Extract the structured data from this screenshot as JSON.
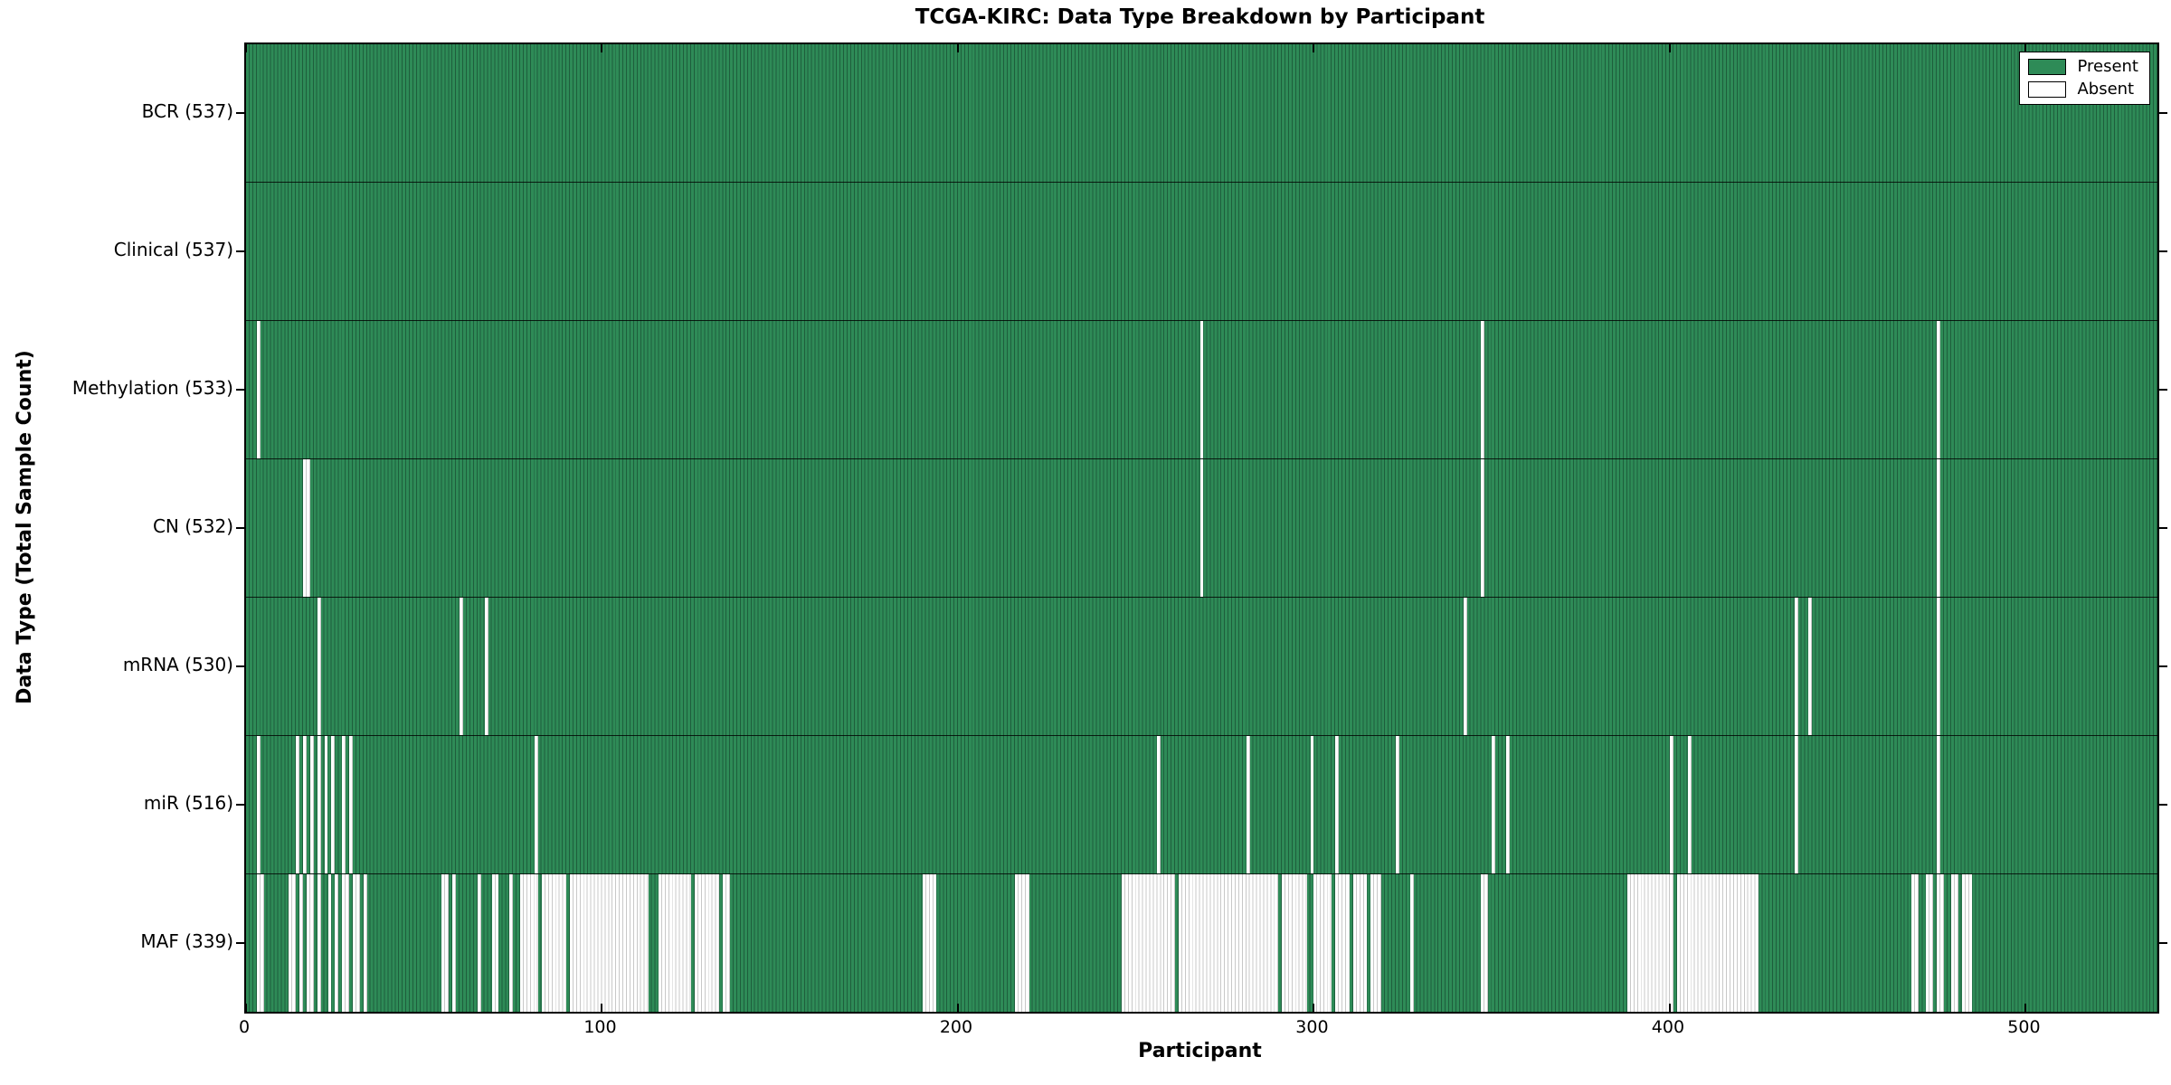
{
  "title": "TCGA-KIRC: Data Type Breakdown by Participant",
  "chart_data": {
    "type": "heatmap",
    "title": "TCGA-KIRC: Data Type Breakdown by Participant",
    "xlabel": "Participant",
    "ylabel": "Data Type (Total Sample Count)",
    "x_ticks": [
      0,
      100,
      200,
      300,
      400,
      500
    ],
    "n_participants": 537,
    "grid": false,
    "legend_position": "upper right",
    "legend": [
      {
        "label": "Present",
        "color": "#2E8B57"
      },
      {
        "label": "Absent",
        "color": "#FFFFFF"
      }
    ],
    "present_color": "#2E8B57",
    "present_edge_color": "#1E5E3C",
    "absent_color": "#FFFFFF",
    "absent_edge_color": "#C8C8C8",
    "rows": [
      {
        "name": "bcr",
        "label": "BCR (537)",
        "count": 537,
        "absent_runs": []
      },
      {
        "name": "clinical",
        "label": "Clinical (537)",
        "count": 537,
        "absent_runs": []
      },
      {
        "name": "methylation",
        "label": "Methylation (533)",
        "count": 533,
        "absent_runs": [
          [
            3,
            3
          ],
          [
            268,
            268
          ],
          [
            347,
            347
          ],
          [
            475,
            475
          ]
        ]
      },
      {
        "name": "cn",
        "label": "CN (532)",
        "count": 532,
        "absent_runs": [
          [
            16,
            17
          ],
          [
            268,
            268
          ],
          [
            347,
            347
          ],
          [
            475,
            475
          ]
        ]
      },
      {
        "name": "mrna",
        "label": "mRNA (530)",
        "count": 530,
        "absent_runs": [
          [
            20,
            20
          ],
          [
            60,
            60
          ],
          [
            67,
            67
          ],
          [
            342,
            342
          ],
          [
            435,
            435
          ],
          [
            439,
            439
          ],
          [
            475,
            475
          ]
        ]
      },
      {
        "name": "mir",
        "label": "miR (516)",
        "count": 516,
        "absent_runs": [
          [
            3,
            3
          ],
          [
            14,
            14
          ],
          [
            16,
            16
          ],
          [
            18,
            18
          ],
          [
            20,
            20
          ],
          [
            22,
            22
          ],
          [
            24,
            24
          ],
          [
            27,
            27
          ],
          [
            29,
            29
          ],
          [
            81,
            81
          ],
          [
            256,
            256
          ],
          [
            281,
            281
          ],
          [
            299,
            299
          ],
          [
            306,
            306
          ],
          [
            323,
            323
          ],
          [
            350,
            350
          ],
          [
            354,
            354
          ],
          [
            400,
            400
          ],
          [
            405,
            405
          ],
          [
            435,
            435
          ],
          [
            475,
            475
          ]
        ]
      },
      {
        "name": "maf",
        "label": "MAF (339)",
        "count": 339,
        "absent_runs": [
          [
            3,
            4
          ],
          [
            12,
            13
          ],
          [
            15,
            15
          ],
          [
            17,
            18
          ],
          [
            20,
            20
          ],
          [
            23,
            23
          ],
          [
            25,
            25
          ],
          [
            27,
            28
          ],
          [
            30,
            31
          ],
          [
            33,
            33
          ],
          [
            55,
            56
          ],
          [
            58,
            58
          ],
          [
            65,
            65
          ],
          [
            69,
            70
          ],
          [
            74,
            74
          ],
          [
            77,
            81
          ],
          [
            83,
            89
          ],
          [
            91,
            112
          ],
          [
            116,
            124
          ],
          [
            126,
            132
          ],
          [
            134,
            135
          ],
          [
            190,
            193
          ],
          [
            216,
            219
          ],
          [
            246,
            260
          ],
          [
            262,
            289
          ],
          [
            291,
            297
          ],
          [
            300,
            304
          ],
          [
            306,
            309
          ],
          [
            311,
            314
          ],
          [
            316,
            318
          ],
          [
            327,
            327
          ],
          [
            347,
            348
          ],
          [
            388,
            400
          ],
          [
            402,
            424
          ],
          [
            468,
            469
          ],
          [
            472,
            473
          ],
          [
            475,
            476
          ],
          [
            479,
            480
          ],
          [
            482,
            484
          ]
        ]
      }
    ]
  }
}
